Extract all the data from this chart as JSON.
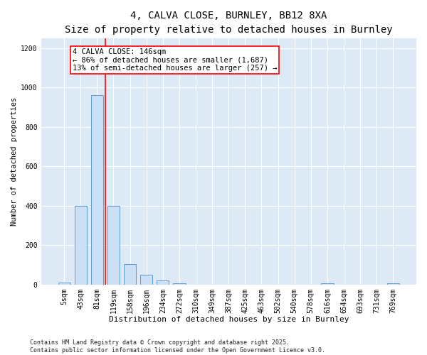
{
  "title": "4, CALVA CLOSE, BURNLEY, BB12 8XA",
  "subtitle": "Size of property relative to detached houses in Burnley",
  "xlabel": "Distribution of detached houses by size in Burnley",
  "ylabel": "Number of detached properties",
  "categories": [
    "5sqm",
    "43sqm",
    "81sqm",
    "119sqm",
    "158sqm",
    "196sqm",
    "234sqm",
    "272sqm",
    "310sqm",
    "349sqm",
    "387sqm",
    "425sqm",
    "463sqm",
    "502sqm",
    "540sqm",
    "578sqm",
    "616sqm",
    "654sqm",
    "693sqm",
    "731sqm",
    "769sqm"
  ],
  "values": [
    10,
    400,
    960,
    400,
    105,
    50,
    20,
    5,
    0,
    0,
    0,
    0,
    0,
    0,
    0,
    0,
    5,
    0,
    0,
    0,
    5
  ],
  "bar_color": "#cce0f5",
  "bar_edge_color": "#5b9bd5",
  "vline_x": 2.5,
  "vline_color": "red",
  "annotation_text": "4 CALVA CLOSE: 146sqm\n← 86% of detached houses are smaller (1,687)\n13% of semi-detached houses are larger (257) →",
  "annotation_box_color": "red",
  "ylim": [
    0,
    1250
  ],
  "yticks": [
    0,
    200,
    400,
    600,
    800,
    1000,
    1200
  ],
  "background_color": "#ddeaf6",
  "footnote": "Contains HM Land Registry data © Crown copyright and database right 2025.\nContains public sector information licensed under the Open Government Licence v3.0.",
  "title_fontsize": 10,
  "subtitle_fontsize": 9,
  "xlabel_fontsize": 8,
  "ylabel_fontsize": 7.5,
  "tick_fontsize": 7,
  "annot_fontsize": 7.5,
  "footnote_fontsize": 6
}
